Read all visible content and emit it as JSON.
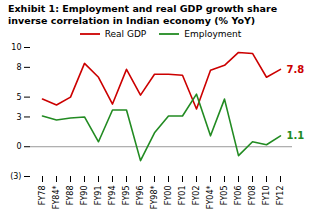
{
  "chart_data": {
    "type": "line",
    "title": "Exhibit 1: Employment and real GDP growth share",
    "subtitle": "inverse correlation in Indian economy (% YoY)",
    "categories": [
      "FY78",
      "FY84*",
      "FY88",
      "FY90",
      "FY91",
      "FY94",
      "FY95",
      "FY96",
      "FY98*",
      "FY00",
      "FY01",
      "FY02",
      "FY04*",
      "FY05",
      "FY06",
      "FY08",
      "FY10",
      "FY12"
    ],
    "series": [
      {
        "name": "Real GDP",
        "color": "#cc0000",
        "values": [
          4.8,
          4.2,
          5.0,
          8.4,
          7.0,
          4.3,
          7.8,
          5.2,
          7.3,
          7.3,
          7.2,
          3.8,
          7.7,
          8.2,
          9.5,
          9.4,
          7.0,
          7.8
        ]
      },
      {
        "name": "Employment",
        "color": "#228B22",
        "values": [
          3.1,
          2.7,
          2.9,
          3.0,
          0.5,
          3.7,
          3.7,
          -1.4,
          1.4,
          3.1,
          3.1,
          5.3,
          1.1,
          4.8,
          -0.9,
          0.5,
          0.2,
          1.1
        ]
      }
    ],
    "ylim": [
      -3,
      10
    ],
    "yticks": [
      {
        "value": -3,
        "label": "(3)"
      },
      0,
      3,
      5,
      8,
      10
    ],
    "annotations": [
      {
        "type": "rule",
        "y": 0,
        "color": "gray"
      },
      {
        "type": "text",
        "text": "7.8",
        "x": "FY12",
        "y": 7.8,
        "color": "#cc0000"
      },
      {
        "type": "text",
        "text": "1.1",
        "x": "FY12",
        "y": 1.1,
        "color": "#228B22"
      }
    ],
    "grid": false,
    "legend": "top"
  }
}
